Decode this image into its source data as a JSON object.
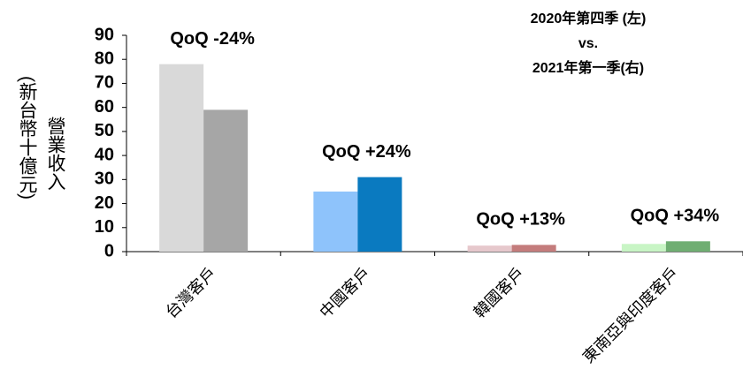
{
  "chart_data": {
    "type": "bar",
    "title_lines": [
      "2020年第四季 (左)",
      "vs.",
      "2021年第一季(右)"
    ],
    "y_label_lines": [
      "營業收入",
      "(新台幣十億元)"
    ],
    "categories": [
      "台灣客戶",
      "中國客戶",
      "韓國客戶",
      "東南亞與印度客戶"
    ],
    "series": [
      {
        "colors": [
          "#d9d9d9",
          "#8ec3fb",
          "#e6c8cc",
          "#c8f5c5"
        ],
        "values": [
          78,
          25,
          2.5,
          3.2
        ]
      },
      {
        "colors": [
          "#a6a6a6",
          "#0a7ac0",
          "#c47c7c",
          "#6fae72"
        ],
        "values": [
          59,
          31,
          2.8,
          4.3
        ]
      }
    ],
    "annotations": [
      "QoQ -24%",
      "QoQ +24%",
      "QoQ +13%",
      "QoQ  +34%"
    ],
    "ylim": [
      0,
      90
    ],
    "yticks": [
      0,
      10,
      20,
      30,
      40,
      50,
      60,
      70,
      80,
      90
    ]
  }
}
